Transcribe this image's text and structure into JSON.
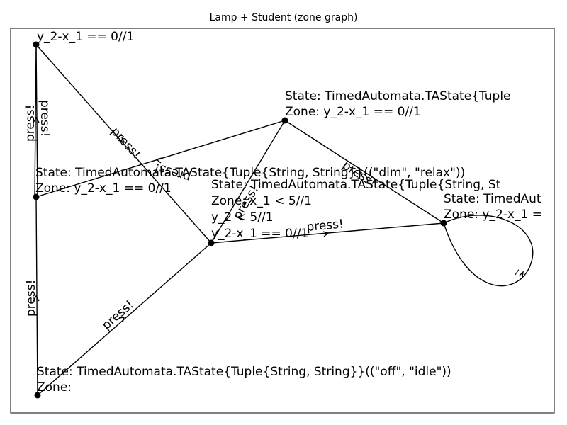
{
  "title": "Lamp + Student (zone graph)",
  "nodes": {
    "top_left": {
      "lines": [
        "y_2-x_1 == 0//1"
      ]
    },
    "upper_right": {
      "lines": [
        "State: TimedAutomata.TAState{Tuple",
        "Zone: y_2-x_1 == 0//1"
      ]
    },
    "left_middle": {
      "lines": [
        "State: TimedAutomata.TAState{Tuple{String, String}}((\"dim\", \"relax\"))",
        "Zone: y_2-x_1 == 0//1"
      ]
    },
    "center": {
      "lines": [
        "State: TimedAutomata.TAState{Tuple{String, St",
        "Zone: x_1 < 5//1",
        "y_2 < 5//1",
        "y_2-x_1 == 0//1"
      ]
    },
    "right": {
      "lines": [
        "State: TimedAut",
        "Zone: y_2-x_1 ="
      ]
    },
    "bottom_left": {
      "lines": [
        "State: TimedAutomata.TAState{Tuple{String, String}}((\"off\", \"idle\"))",
        "Zone:"
      ]
    }
  },
  "edge_labels": {
    "press": "press!",
    "loop": "_"
  },
  "colors": {
    "ink": "#000000",
    "background": "#ffffff"
  }
}
